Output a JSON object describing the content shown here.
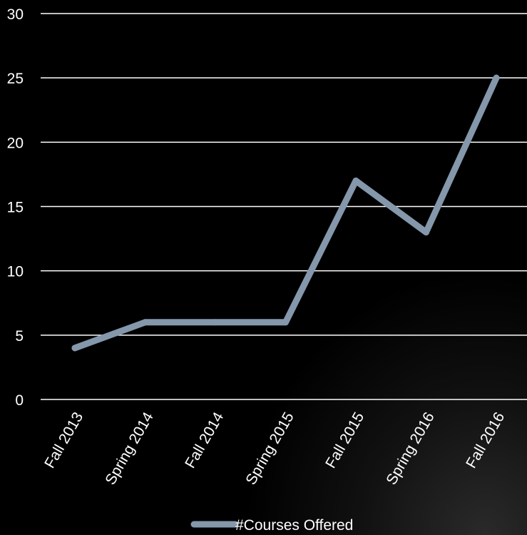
{
  "chart_data": {
    "type": "line",
    "categories": [
      "Fall 2013",
      "Spring 2014",
      "Fall 2014",
      "Spring 2015",
      "Fall 2015",
      "Spring 2016",
      "Fall 2016"
    ],
    "series": [
      {
        "name": "#Courses Offered",
        "values": [
          4,
          6,
          6,
          6,
          17,
          13,
          25
        ]
      }
    ],
    "ylim": [
      0,
      30
    ],
    "yticks": [
      0,
      5,
      10,
      15,
      20,
      25,
      30
    ],
    "grid": true,
    "legend_position": "bottom",
    "colors": {
      "background": "#000000",
      "line": "#8497ab",
      "grid": "#ffffff",
      "text": "#ffffff"
    }
  }
}
